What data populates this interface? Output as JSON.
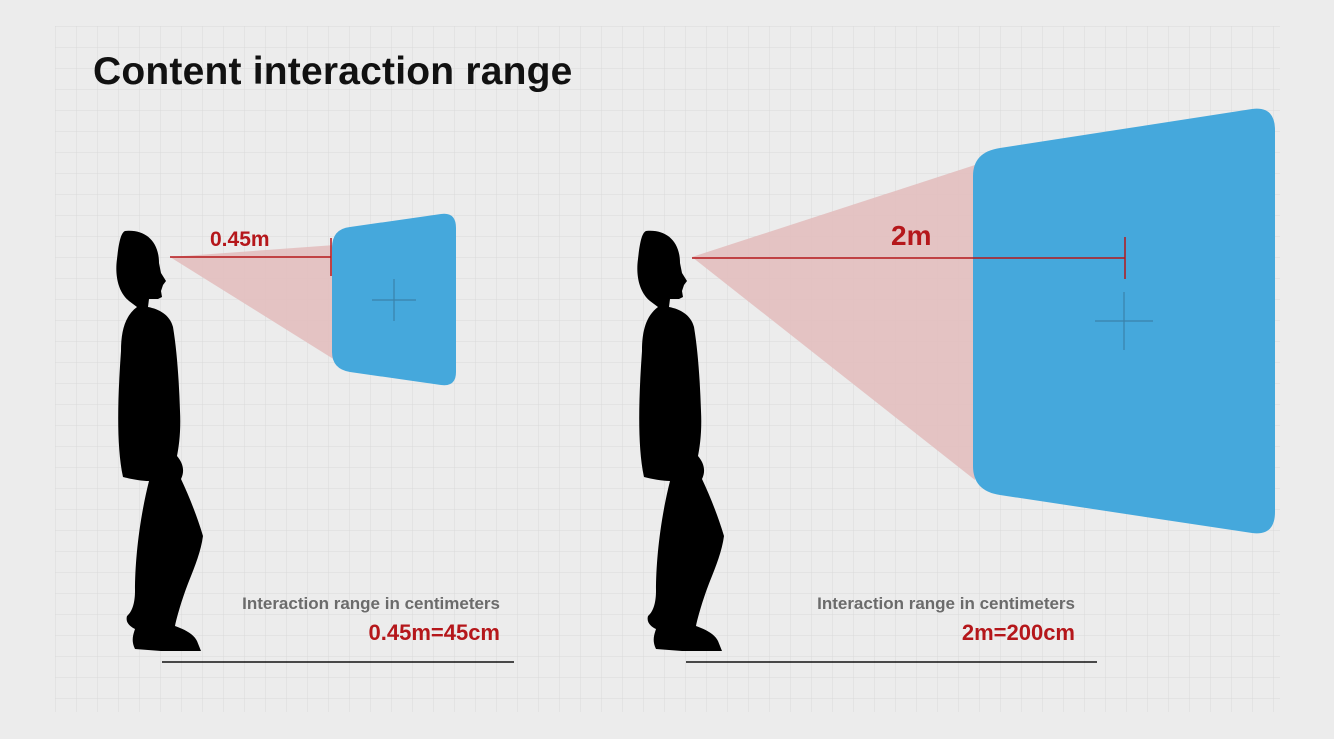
{
  "title": "Content interaction range",
  "colors": {
    "background": "#ececec",
    "grid": "#dadada",
    "panel": "#45a8dc",
    "cone": "#e3bcbc",
    "accent_red": "#b5171b",
    "silhouette": "#000000"
  },
  "examples": [
    {
      "distance_label": "0.45m",
      "caption_label": "Interaction range in centimeters",
      "caption_value": "0.45m=45cm"
    },
    {
      "distance_label": "2m",
      "caption_label": "Interaction range in centimeters",
      "caption_value": "2m=200cm"
    }
  ]
}
